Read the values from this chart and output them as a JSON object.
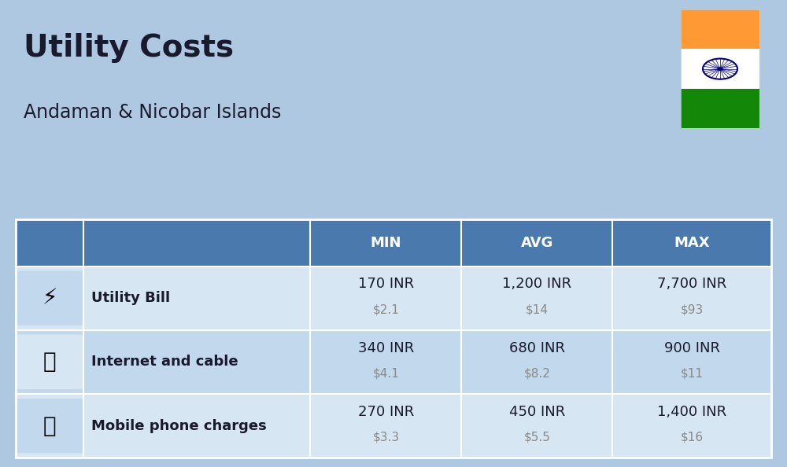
{
  "title": "Utility Costs",
  "subtitle": "Andaman & Nicobar Islands",
  "background_color": "#adc8e0",
  "table_header_bg": "#4a7aad",
  "table_header_text": "#ffffff",
  "row_bg_light": "#d6e6f2",
  "row_bg_dark": "#c2d9ed",
  "col_separator_color": "#4a7aad",
  "headers": [
    "",
    "",
    "MIN",
    "AVG",
    "MAX"
  ],
  "rows": [
    {
      "label": "Utility Bill",
      "min_inr": "170 INR",
      "min_usd": "$2.1",
      "avg_inr": "1,200 INR",
      "avg_usd": "$14",
      "max_inr": "7,700 INR",
      "max_usd": "$93"
    },
    {
      "label": "Internet and cable",
      "min_inr": "340 INR",
      "min_usd": "$4.1",
      "avg_inr": "680 INR",
      "avg_usd": "$8.2",
      "max_inr": "900 INR",
      "max_usd": "$11"
    },
    {
      "label": "Mobile phone charges",
      "min_inr": "270 INR",
      "min_usd": "$3.3",
      "avg_inr": "450 INR",
      "avg_usd": "$5.5",
      "max_inr": "1,400 INR",
      "max_usd": "$16"
    }
  ],
  "flag_colors": [
    "#ff9933",
    "#ffffff",
    "#138808"
  ],
  "flag_chakra_color": "#000080",
  "title_fontsize": 28,
  "subtitle_fontsize": 17,
  "header_fontsize": 13,
  "label_fontsize": 13,
  "value_fontsize": 13,
  "usd_fontsize": 11,
  "text_dark": "#1a1a2e",
  "usd_color": "#888888"
}
